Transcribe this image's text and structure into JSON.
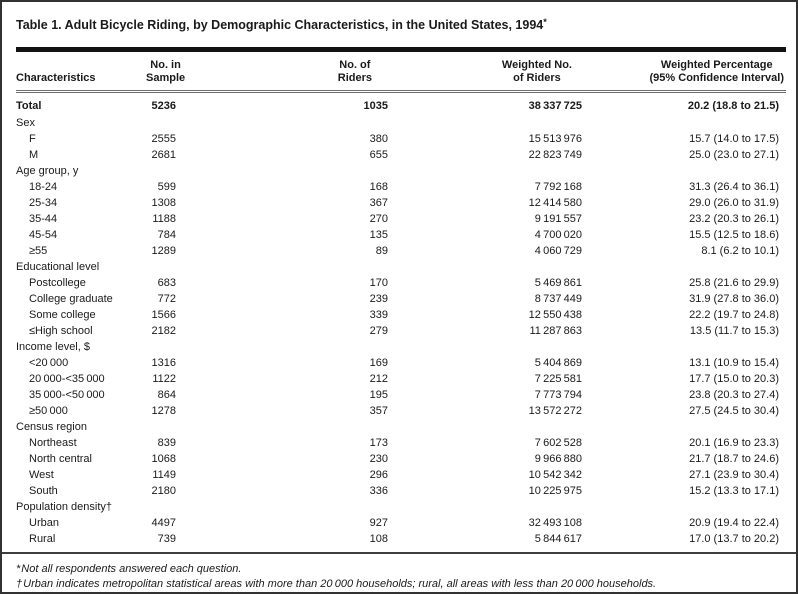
{
  "page": {
    "title": "Table 1. Adult Bicycle Riding, by Demographic Characteristics, in the United States, 1994",
    "title_marker": "*"
  },
  "table": {
    "headers": {
      "characteristics": "Characteristics",
      "sample": [
        "No. in",
        "Sample"
      ],
      "riders": [
        "No. of",
        "Riders"
      ],
      "weighted": [
        "Weighted No.",
        "of Riders"
      ],
      "pct": [
        "Weighted Percentage",
        "(95% Confidence Interval)"
      ]
    },
    "total": {
      "label": "Total",
      "sample": "5236",
      "riders": "1035",
      "weighted": "38 337 725",
      "pct": "20.2 (18.8 to 21.5)"
    },
    "sections": [
      {
        "label": "Sex",
        "rows": [
          {
            "label": "F",
            "sample": "2555",
            "riders": "380",
            "weighted": "15 513 976",
            "pct": "15.7 (14.0 to 17.5)"
          },
          {
            "label": "M",
            "sample": "2681",
            "riders": "655",
            "weighted": "22 823 749",
            "pct": "25.0 (23.0 to 27.1)"
          }
        ]
      },
      {
        "label": "Age group, y",
        "rows": [
          {
            "label": "18-24",
            "sample": "599",
            "riders": "168",
            "weighted": "7 792 168",
            "pct": "31.3 (26.4 to 36.1)"
          },
          {
            "label": "25-34",
            "sample": "1308",
            "riders": "367",
            "weighted": "12 414 580",
            "pct": "29.0 (26.0 to 31.9)"
          },
          {
            "label": "35-44",
            "sample": "1188",
            "riders": "270",
            "weighted": "9 191 557",
            "pct": "23.2 (20.3 to 26.1)"
          },
          {
            "label": "45-54",
            "sample": "784",
            "riders": "135",
            "weighted": "4 700 020",
            "pct": "15.5 (12.5 to 18.6)"
          },
          {
            "label": "≥55",
            "sample": "1289",
            "riders": "89",
            "weighted": "4 060 729",
            "pct": "8.1 (6.2 to 10.1)"
          }
        ]
      },
      {
        "label": "Educational level",
        "rows": [
          {
            "label": "Postcollege",
            "sample": "683",
            "riders": "170",
            "weighted": "5 469 861",
            "pct": "25.8 (21.6 to 29.9)"
          },
          {
            "label": "College graduate",
            "sample": "772",
            "riders": "239",
            "weighted": "8 737 449",
            "pct": "31.9 (27.8 to 36.0)"
          },
          {
            "label": "Some college",
            "sample": "1566",
            "riders": "339",
            "weighted": "12 550 438",
            "pct": "22.2 (19.7 to 24.8)"
          },
          {
            "label": "≤High school",
            "sample": "2182",
            "riders": "279",
            "weighted": "11 287 863",
            "pct": "13.5 (11.7 to 15.3)"
          }
        ]
      },
      {
        "label": "Income level, $",
        "rows": [
          {
            "label": "<20 000",
            "sample": "1316",
            "riders": "169",
            "weighted": "5 404 869",
            "pct": "13.1 (10.9 to 15.4)"
          },
          {
            "label": "20 000-<35 000",
            "sample": "1122",
            "riders": "212",
            "weighted": "7 225 581",
            "pct": "17.7 (15.0 to 20.3)"
          },
          {
            "label": "35 000-<50 000",
            "sample": "864",
            "riders": "195",
            "weighted": "7 773 794",
            "pct": "23.8 (20.3 to 27.4)"
          },
          {
            "label": "≥50 000",
            "sample": "1278",
            "riders": "357",
            "weighted": "13 572 272",
            "pct": "27.5 (24.5 to 30.4)"
          }
        ]
      },
      {
        "label": "Census region",
        "rows": [
          {
            "label": "Northeast",
            "sample": "839",
            "riders": "173",
            "weighted": "7 602 528",
            "pct": "20.1 (16.9 to 23.3)"
          },
          {
            "label": "North central",
            "sample": "1068",
            "riders": "230",
            "weighted": "9 966 880",
            "pct": "21.7 (18.7 to 24.6)"
          },
          {
            "label": "West",
            "sample": "1149",
            "riders": "296",
            "weighted": "10 542 342",
            "pct": "27.1 (23.9 to 30.4)"
          },
          {
            "label": "South",
            "sample": "2180",
            "riders": "336",
            "weighted": "10 225 975",
            "pct": "15.2 (13.3 to 17.1)"
          }
        ]
      },
      {
        "label": "Population density†",
        "rows": [
          {
            "label": "Urban",
            "sample": "4497",
            "riders": "927",
            "weighted": "32 493 108",
            "pct": "20.9 (19.4 to 22.4)"
          },
          {
            "label": "Rural",
            "sample": "739",
            "riders": "108",
            "weighted": "5 844 617",
            "pct": "17.0 (13.7 to 20.2)"
          }
        ]
      }
    ]
  },
  "footnotes": [
    {
      "marker": "*",
      "text": "Not all respondents answered each question."
    },
    {
      "marker": "†",
      "text": "Urban indicates metropolitan statistical areas with more than 20 000 households; rural, all areas with less than 20 000 households."
    }
  ]
}
